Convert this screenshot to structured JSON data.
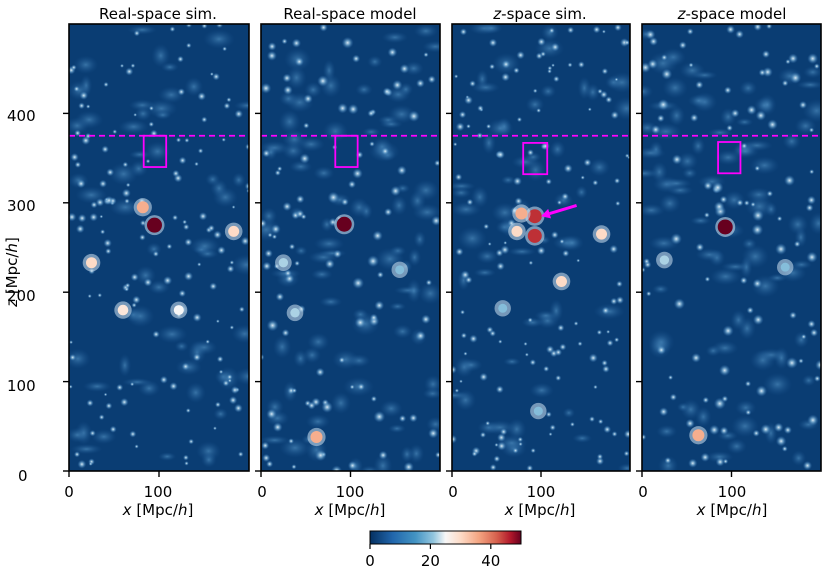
{
  "chart_data": [
    {
      "type": "heatmap",
      "title": "Real-space sim.",
      "xlabel": "x [Mpc/h]",
      "ylabel": "z [Mpc/h]",
      "xlim": [
        0,
        200
      ],
      "ylim": [
        0,
        500
      ],
      "x_ticks": [
        0,
        100
      ],
      "y_ticks": [
        0,
        100,
        200,
        300,
        400
      ],
      "hline_z": 375,
      "box": {
        "x": [
          83,
          108
        ],
        "z": [
          340,
          375
        ]
      },
      "hotspots": [
        {
          "x": 95,
          "z": 275,
          "value": 50
        },
        {
          "x": 82,
          "z": 295,
          "value": 35
        },
        {
          "x": 25,
          "z": 233,
          "value": 30
        },
        {
          "x": 60,
          "z": 180,
          "value": 28
        },
        {
          "x": 122,
          "z": 180,
          "value": 25
        },
        {
          "x": 183,
          "z": 268,
          "value": 30
        }
      ]
    },
    {
      "type": "heatmap",
      "title": "Real-space model",
      "xlabel": "x [Mpc/h]",
      "xlim": [
        0,
        200
      ],
      "ylim": [
        0,
        500
      ],
      "x_ticks": [
        0,
        100
      ],
      "hline_z": 375,
      "box": {
        "x": [
          83,
          108
        ],
        "z": [
          340,
          375
        ]
      },
      "hotspots": [
        {
          "x": 93,
          "z": 276,
          "value": 50
        },
        {
          "x": 62,
          "z": 38,
          "value": 35
        },
        {
          "x": 25,
          "z": 233,
          "value": 22
        },
        {
          "x": 38,
          "z": 177,
          "value": 22
        },
        {
          "x": 155,
          "z": 225,
          "value": 20
        }
      ]
    },
    {
      "type": "heatmap",
      "title": "z-space sim.",
      "xlabel": "x [Mpc/h]",
      "xlim": [
        0,
        200
      ],
      "ylim": [
        0,
        500
      ],
      "x_ticks": [
        0,
        100
      ],
      "hline_z": 375,
      "box": {
        "x": [
          80,
          107
        ],
        "z": [
          332,
          367
        ]
      },
      "arrow": {
        "from": [
          140,
          297
        ],
        "to": [
          100,
          285
        ]
      },
      "hotspots": [
        {
          "x": 93,
          "z": 285,
          "value": 45
        },
        {
          "x": 93,
          "z": 263,
          "value": 45
        },
        {
          "x": 78,
          "z": 288,
          "value": 35
        },
        {
          "x": 73,
          "z": 268,
          "value": 30
        },
        {
          "x": 168,
          "z": 265,
          "value": 30
        },
        {
          "x": 123,
          "z": 212,
          "value": 30
        },
        {
          "x": 57,
          "z": 182,
          "value": 20
        },
        {
          "x": 97,
          "z": 67,
          "value": 20
        }
      ]
    },
    {
      "type": "heatmap",
      "title": "z-space model",
      "xlabel": "x [Mpc/h]",
      "xlim": [
        0,
        200
      ],
      "ylim": [
        0,
        500
      ],
      "x_ticks": [
        0,
        100
      ],
      "hline_z": 375,
      "box": {
        "x": [
          85,
          110
        ],
        "z": [
          333,
          368
        ]
      },
      "hotspots": [
        {
          "x": 93,
          "z": 273,
          "value": 50
        },
        {
          "x": 63,
          "z": 40,
          "value": 35
        },
        {
          "x": 25,
          "z": 236,
          "value": 22
        },
        {
          "x": 160,
          "z": 228,
          "value": 20
        }
      ]
    }
  ],
  "colorbar": {
    "cmap": "RdBu_r",
    "vmin": 0,
    "vmax": 50,
    "ticks": [
      0,
      20,
      40
    ]
  },
  "colors": {
    "background": "#0a3d73",
    "annotation": "#ff00ff"
  }
}
